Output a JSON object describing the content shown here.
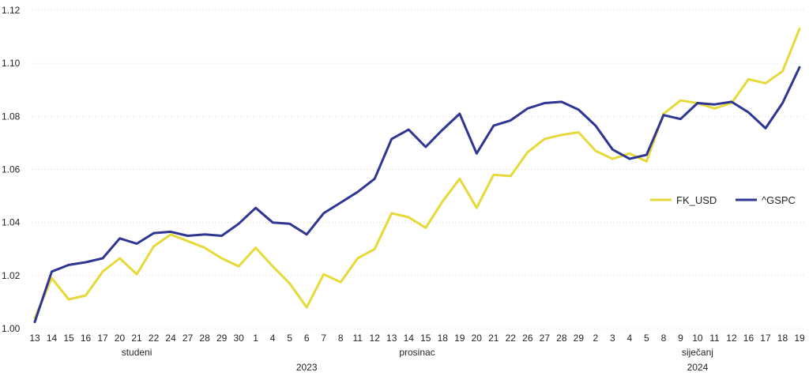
{
  "chart_data": {
    "type": "line",
    "x": [
      "13",
      "14",
      "15",
      "16",
      "17",
      "20",
      "21",
      "22",
      "24",
      "27",
      "28",
      "29",
      "30",
      "1",
      "4",
      "5",
      "6",
      "7",
      "8",
      "11",
      "12",
      "13",
      "14",
      "15",
      "18",
      "19",
      "20",
      "21",
      "22",
      "26",
      "27",
      "28",
      "29",
      "2",
      "3",
      "4",
      "5",
      "8",
      "9",
      "10",
      "11",
      "12",
      "16",
      "17",
      "18",
      "19"
    ],
    "month_groups": [
      {
        "label": "studeni",
        "from": 0,
        "to": 12
      },
      {
        "label": "prosinac",
        "from": 13,
        "to": 32
      },
      {
        "label": "siječanj",
        "from": 33,
        "to": 45
      }
    ],
    "year_groups": [
      {
        "label": "2023",
        "from": 0,
        "to": 32
      },
      {
        "label": "2024",
        "from": 33,
        "to": 45
      }
    ],
    "series": [
      {
        "name": "FK_USD",
        "color": "#E6D93A",
        "values": [
          1.004,
          1.019,
          1.011,
          1.0125,
          1.0215,
          1.0265,
          1.0205,
          1.031,
          1.0355,
          1.033,
          1.0305,
          1.0265,
          1.0235,
          1.0305,
          1.0235,
          1.017,
          1.008,
          1.0205,
          1.0175,
          1.0265,
          1.03,
          1.0435,
          1.042,
          1.038,
          1.048,
          1.0565,
          1.0455,
          1.058,
          1.0575,
          1.0665,
          1.0715,
          1.073,
          1.074,
          1.067,
          1.064,
          1.066,
          1.063,
          1.081,
          1.086,
          1.085,
          1.083,
          1.085,
          1.094,
          1.0925,
          1.097,
          1.113
        ]
      },
      {
        "name": "^GSPC",
        "color": "#2E3592",
        "values": [
          1.0025,
          1.0215,
          1.024,
          1.025,
          1.0265,
          1.034,
          1.032,
          1.036,
          1.0365,
          1.035,
          1.0355,
          1.035,
          1.0395,
          1.0455,
          1.04,
          1.0395,
          1.0355,
          1.0435,
          1.0475,
          1.0515,
          1.0565,
          1.0715,
          1.075,
          1.0685,
          1.075,
          1.081,
          1.066,
          1.0765,
          1.0785,
          1.083,
          1.085,
          1.0855,
          1.0825,
          1.0765,
          1.0675,
          1.064,
          1.0655,
          1.0805,
          1.079,
          1.085,
          1.0845,
          1.0855,
          1.0815,
          1.0755,
          1.085,
          1.0985
        ]
      }
    ],
    "ylim": [
      1.0,
      1.12
    ],
    "yticks": [
      "1.00",
      "1.02",
      "1.04",
      "1.06",
      "1.08",
      "1.10",
      "1.12"
    ],
    "grid": true,
    "legend_position": "right"
  }
}
